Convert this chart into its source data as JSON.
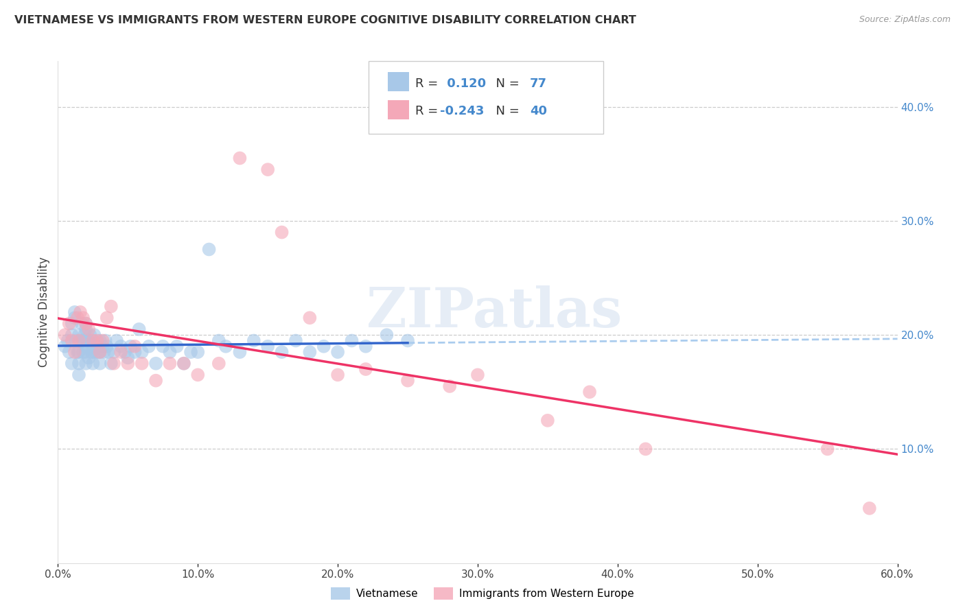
{
  "title": "VIETNAMESE VS IMMIGRANTS FROM WESTERN EUROPE COGNITIVE DISABILITY CORRELATION CHART",
  "source": "Source: ZipAtlas.com",
  "ylabel": "Cognitive Disability",
  "watermark": "ZIPatlas",
  "blue_R": 0.12,
  "blue_N": 77,
  "pink_R": -0.243,
  "pink_N": 40,
  "blue_color": "#A8C8E8",
  "pink_color": "#F4A8B8",
  "blue_line_color": "#3366CC",
  "pink_line_color": "#EE3366",
  "dashed_line_color": "#AACCEE",
  "text_blue_color": "#4488CC",
  "xlim": [
    0.0,
    0.6
  ],
  "ylim": [
    0.0,
    0.44
  ],
  "right_yticks": [
    0.1,
    0.2,
    0.3,
    0.4
  ],
  "right_ytick_labels": [
    "10.0%",
    "20.0%",
    "30.0%",
    "40.0%"
  ],
  "blue_points_x": [
    0.005,
    0.007,
    0.008,
    0.01,
    0.01,
    0.01,
    0.012,
    0.012,
    0.013,
    0.014,
    0.015,
    0.015,
    0.015,
    0.015,
    0.016,
    0.017,
    0.018,
    0.018,
    0.019,
    0.02,
    0.02,
    0.02,
    0.02,
    0.02,
    0.021,
    0.022,
    0.022,
    0.023,
    0.024,
    0.025,
    0.025,
    0.025,
    0.026,
    0.027,
    0.028,
    0.029,
    0.03,
    0.03,
    0.03,
    0.032,
    0.033,
    0.034,
    0.035,
    0.036,
    0.038,
    0.04,
    0.042,
    0.045,
    0.048,
    0.05,
    0.052,
    0.055,
    0.058,
    0.06,
    0.065,
    0.07,
    0.075,
    0.08,
    0.085,
    0.09,
    0.095,
    0.1,
    0.108,
    0.115,
    0.12,
    0.13,
    0.14,
    0.15,
    0.16,
    0.17,
    0.18,
    0.19,
    0.2,
    0.21,
    0.22,
    0.235,
    0.25
  ],
  "blue_points_y": [
    0.19,
    0.195,
    0.185,
    0.2,
    0.21,
    0.175,
    0.22,
    0.215,
    0.195,
    0.185,
    0.2,
    0.185,
    0.175,
    0.165,
    0.195,
    0.21,
    0.195,
    0.185,
    0.2,
    0.19,
    0.21,
    0.205,
    0.185,
    0.175,
    0.195,
    0.195,
    0.18,
    0.2,
    0.185,
    0.195,
    0.185,
    0.175,
    0.2,
    0.185,
    0.19,
    0.185,
    0.195,
    0.185,
    0.175,
    0.19,
    0.185,
    0.195,
    0.19,
    0.185,
    0.175,
    0.185,
    0.195,
    0.19,
    0.185,
    0.18,
    0.19,
    0.185,
    0.205,
    0.185,
    0.19,
    0.175,
    0.19,
    0.185,
    0.19,
    0.175,
    0.185,
    0.185,
    0.275,
    0.195,
    0.19,
    0.185,
    0.195,
    0.19,
    0.185,
    0.195,
    0.185,
    0.19,
    0.185,
    0.195,
    0.19,
    0.2,
    0.195
  ],
  "pink_points_x": [
    0.005,
    0.008,
    0.01,
    0.012,
    0.014,
    0.015,
    0.016,
    0.018,
    0.02,
    0.022,
    0.025,
    0.028,
    0.03,
    0.032,
    0.035,
    0.038,
    0.04,
    0.045,
    0.05,
    0.055,
    0.06,
    0.07,
    0.08,
    0.09,
    0.1,
    0.115,
    0.13,
    0.15,
    0.16,
    0.18,
    0.2,
    0.22,
    0.25,
    0.28,
    0.3,
    0.35,
    0.38,
    0.42,
    0.55,
    0.58
  ],
  "pink_points_y": [
    0.2,
    0.21,
    0.195,
    0.185,
    0.215,
    0.195,
    0.22,
    0.215,
    0.21,
    0.205,
    0.195,
    0.195,
    0.185,
    0.195,
    0.215,
    0.225,
    0.175,
    0.185,
    0.175,
    0.19,
    0.175,
    0.16,
    0.175,
    0.175,
    0.165,
    0.175,
    0.355,
    0.345,
    0.29,
    0.215,
    0.165,
    0.17,
    0.16,
    0.155,
    0.165,
    0.125,
    0.15,
    0.1,
    0.1,
    0.048
  ]
}
